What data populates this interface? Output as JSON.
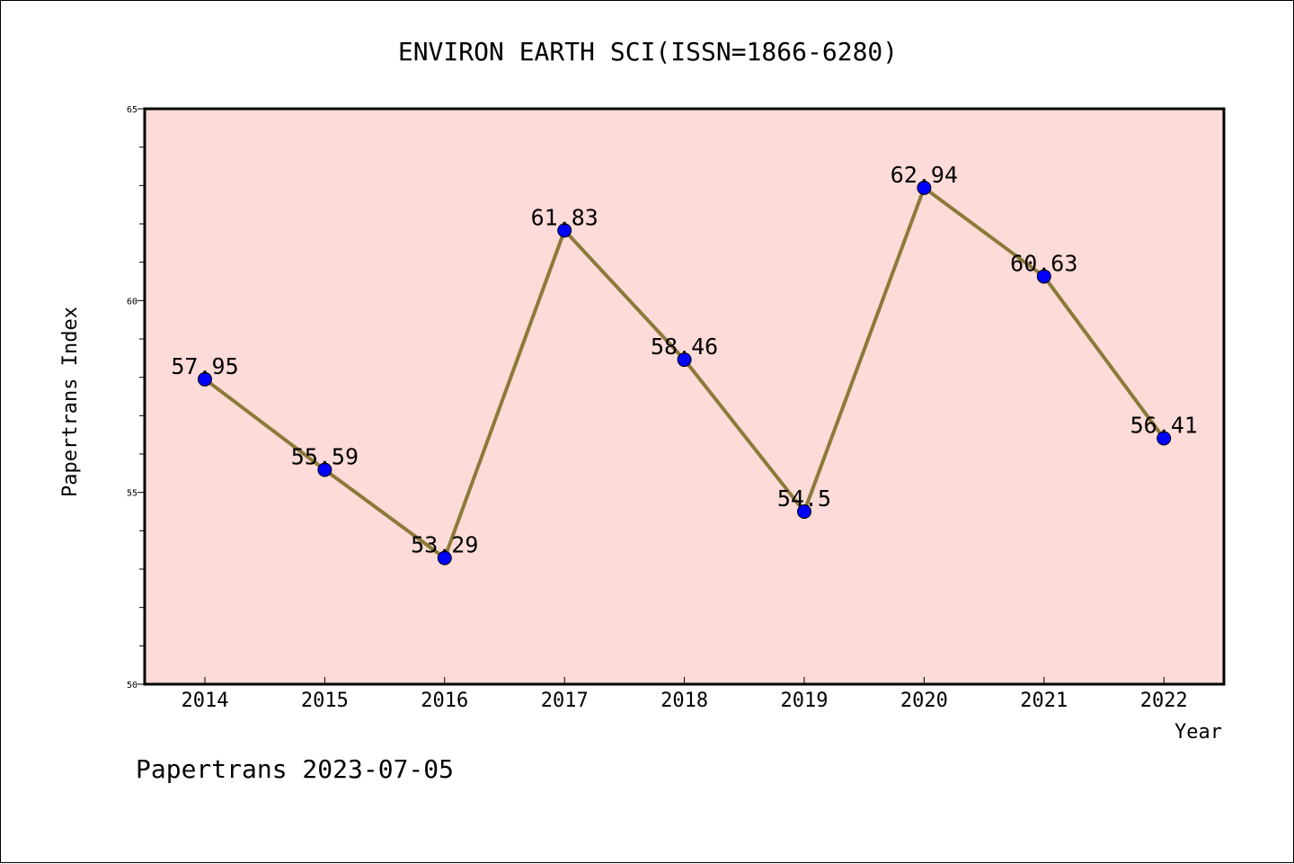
{
  "chart_data": {
    "type": "line",
    "title": "ENVIRON EARTH SCI(ISSN=1866-6280)",
    "xlabel": "Year",
    "ylabel": "Papertrans Index",
    "categories": [
      "2014",
      "2015",
      "2016",
      "2017",
      "2018",
      "2019",
      "2020",
      "2021",
      "2022"
    ],
    "values": [
      57.95,
      55.59,
      53.29,
      61.83,
      58.46,
      54.5,
      62.94,
      60.63,
      56.41
    ],
    "value_labels": [
      "57.95",
      "55.59",
      "53.29",
      "61.83",
      "58.46",
      "54.5",
      "62.94",
      "60.63",
      "56.41"
    ],
    "ylim": [
      50,
      65
    ],
    "y_ticks": [
      "50",
      "55",
      "60",
      "65"
    ],
    "grid": false,
    "colors": {
      "plot_background": "#fddbd8",
      "line": "#8b7a3a",
      "marker": "#0000ff"
    }
  },
  "footer": "Papertrans 2023-07-05"
}
